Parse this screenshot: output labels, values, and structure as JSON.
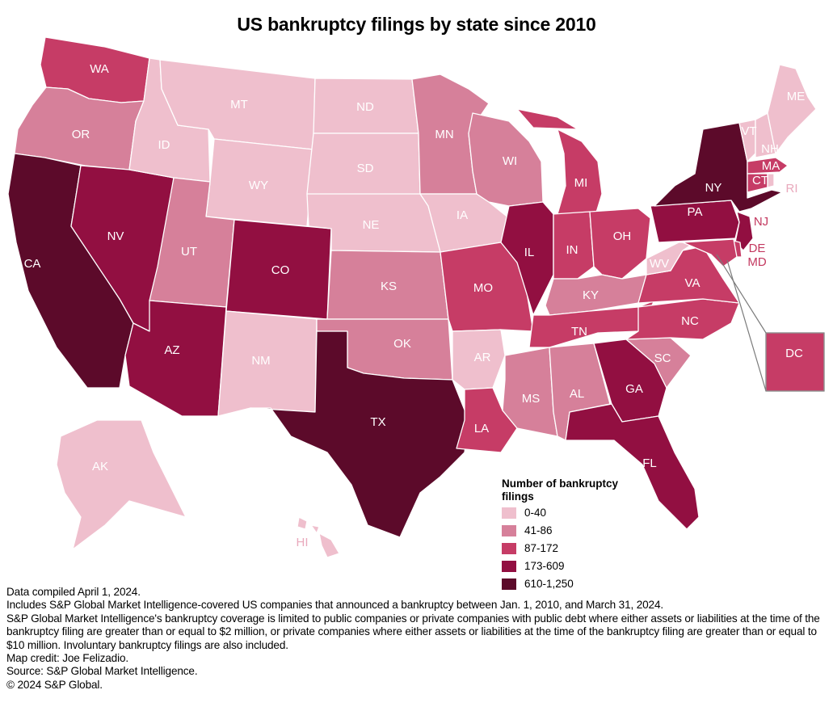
{
  "title": "US bankruptcy filings by state since 2010",
  "legend": {
    "title": "Number of bankruptcy filings",
    "categories": [
      {
        "label": "0-40",
        "color": "#efbfcd"
      },
      {
        "label": "41-86",
        "color": "#d6809a"
      },
      {
        "label": "87-172",
        "color": "#c63c66"
      },
      {
        "label": "173-609",
        "color": "#920f41"
      },
      {
        "label": "610-1,250",
        "color": "#5c0a2a"
      }
    ]
  },
  "states": [
    {
      "code": "WA",
      "bin": "87-172"
    },
    {
      "code": "OR",
      "bin": "41-86"
    },
    {
      "code": "CA",
      "bin": "610-1,250"
    },
    {
      "code": "NV",
      "bin": "173-609"
    },
    {
      "code": "ID",
      "bin": "0-40"
    },
    {
      "code": "MT",
      "bin": "0-40"
    },
    {
      "code": "WY",
      "bin": "0-40"
    },
    {
      "code": "UT",
      "bin": "41-86"
    },
    {
      "code": "AZ",
      "bin": "173-609"
    },
    {
      "code": "CO",
      "bin": "173-609"
    },
    {
      "code": "NM",
      "bin": "0-40"
    },
    {
      "code": "ND",
      "bin": "0-40"
    },
    {
      "code": "SD",
      "bin": "0-40"
    },
    {
      "code": "NE",
      "bin": "0-40"
    },
    {
      "code": "KS",
      "bin": "41-86"
    },
    {
      "code": "OK",
      "bin": "41-86"
    },
    {
      "code": "TX",
      "bin": "610-1,250"
    },
    {
      "code": "MN",
      "bin": "41-86"
    },
    {
      "code": "IA",
      "bin": "0-40"
    },
    {
      "code": "MO",
      "bin": "87-172"
    },
    {
      "code": "AR",
      "bin": "0-40"
    },
    {
      "code": "LA",
      "bin": "87-172"
    },
    {
      "code": "WI",
      "bin": "41-86"
    },
    {
      "code": "IL",
      "bin": "173-609"
    },
    {
      "code": "MI",
      "bin": "87-172"
    },
    {
      "code": "IN",
      "bin": "87-172"
    },
    {
      "code": "OH",
      "bin": "87-172"
    },
    {
      "code": "KY",
      "bin": "41-86"
    },
    {
      "code": "TN",
      "bin": "87-172"
    },
    {
      "code": "MS",
      "bin": "41-86"
    },
    {
      "code": "AL",
      "bin": "41-86"
    },
    {
      "code": "GA",
      "bin": "173-609"
    },
    {
      "code": "FL",
      "bin": "173-609"
    },
    {
      "code": "SC",
      "bin": "41-86"
    },
    {
      "code": "NC",
      "bin": "87-172"
    },
    {
      "code": "VA",
      "bin": "87-172"
    },
    {
      "code": "WV",
      "bin": "0-40"
    },
    {
      "code": "PA",
      "bin": "173-609"
    },
    {
      "code": "NY",
      "bin": "610-1,250"
    },
    {
      "code": "NJ",
      "bin": "173-609"
    },
    {
      "code": "DE",
      "bin": "87-172"
    },
    {
      "code": "MD",
      "bin": "87-172"
    },
    {
      "code": "DC",
      "bin": "87-172"
    },
    {
      "code": "VT",
      "bin": "0-40"
    },
    {
      "code": "NH",
      "bin": "0-40"
    },
    {
      "code": "ME",
      "bin": "0-40"
    },
    {
      "code": "MA",
      "bin": "87-172"
    },
    {
      "code": "CT",
      "bin": "87-172"
    },
    {
      "code": "RI",
      "bin": "0-40"
    },
    {
      "code": "AK",
      "bin": "0-40"
    },
    {
      "code": "HI",
      "bin": "0-40"
    }
  ],
  "notes": [
    "Data compiled April 1, 2024.",
    "Includes S&P Global Market Intelligence-covered US companies that announced a bankruptcy between Jan. 1, 2010, and March 31, 2024.",
    "S&P Global Market Intelligence's bankruptcy coverage is limited to public companies or private companies with public debt where either assets or liabilities at the time of the bankruptcy filing are greater than or equal to $2 million, or private companies where either assets or liabilities at the time of the bankruptcy filing are greater than or equal to $10 million. Involuntary bankruptcy filings are also included.",
    "Map credit: Joe Felizadio.",
    "Source: S&P Global Market Intelligence.",
    "© 2024 S&P Global."
  ]
}
